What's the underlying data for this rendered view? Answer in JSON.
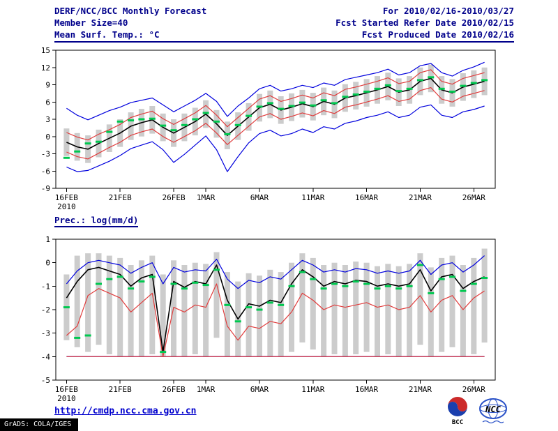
{
  "header": {
    "title": "DERF/NCC/BCC Monthly Forecast",
    "period": "For 2010/02/16-2010/03/27",
    "member_size": "Member Size=40",
    "refer_date": "Fcst Started Refer Date 2010/02/15",
    "produced_date": "Fcst Produced Date 2010/02/16"
  },
  "footer": {
    "link": "http://cmdp.ncc.cma.gov.cn",
    "credit": "GrADS: COLA/IGES",
    "logos": [
      {
        "label": "BCC"
      },
      {
        "label": "NCC"
      }
    ]
  },
  "colors": {
    "header": "#00008b",
    "link": "#0000cd",
    "blue": "#0000dd",
    "red": "#e03c3c",
    "black": "#000000",
    "green": "#00c850",
    "bar": "#cccccc",
    "axis": "#000000"
  },
  "chart_data": [
    {
      "type": "line",
      "title": "Mean Surf. Temp.: °C",
      "xlabel": "",
      "ylabel": "°C",
      "ylim": [
        -9,
        15
      ],
      "yticks": [
        15,
        12,
        9,
        6,
        3,
        0,
        -3,
        -6,
        -9
      ],
      "n": 40,
      "x_sub_year": "2010",
      "xticks": [
        {
          "i": 0,
          "label": "16FEB",
          "sub": "2010"
        },
        {
          "i": 5,
          "label": "21FEB"
        },
        {
          "i": 10,
          "label": "26FEB"
        },
        {
          "i": 13,
          "label": "1MAR"
        },
        {
          "i": 18,
          "label": "6MAR"
        },
        {
          "i": 23,
          "label": "11MAR"
        },
        {
          "i": 28,
          "label": "16MAR"
        },
        {
          "i": 33,
          "label": "21MAR"
        },
        {
          "i": 38,
          "label": "26MAR"
        }
      ],
      "bars": {
        "name": "ensemble-spread",
        "low": [
          -3.4,
          -4.2,
          -4.6,
          -3.6,
          -2.7,
          -1.8,
          -0.6,
          0.0,
          0.5,
          -0.8,
          -1.8,
          -0.8,
          0.2,
          1.5,
          -0.2,
          -2.2,
          -0.6,
          1.0,
          2.6,
          3.2,
          2.2,
          2.7,
          3.3,
          2.8,
          3.7,
          3.2,
          4.3,
          4.7,
          5.2,
          5.7,
          6.3,
          5.3,
          5.7,
          7.2,
          7.7,
          5.7,
          5.2,
          6.2,
          6.7,
          7.2
        ],
        "high": [
          1.4,
          0.6,
          0.2,
          1.2,
          2.1,
          3.0,
          4.2,
          4.8,
          5.3,
          4.0,
          3.0,
          4.0,
          5.0,
          6.3,
          4.6,
          2.6,
          4.2,
          5.8,
          7.4,
          8.0,
          7.0,
          7.5,
          8.1,
          7.6,
          8.5,
          8.0,
          9.1,
          9.5,
          10.0,
          10.5,
          11.1,
          10.1,
          10.5,
          12.0,
          12.5,
          10.5,
          10.0,
          11.0,
          11.5,
          12.0
        ]
      },
      "lines": [
        {
          "name": "ensemble-max",
          "color": "blue",
          "width": 1.2,
          "values": [
            4.9,
            3.7,
            2.9,
            3.7,
            4.5,
            5.1,
            5.9,
            6.3,
            6.7,
            5.5,
            4.3,
            5.3,
            6.3,
            7.5,
            6.1,
            3.5,
            5.3,
            6.7,
            8.3,
            8.9,
            7.9,
            8.3,
            8.9,
            8.5,
            9.3,
            8.9,
            9.9,
            10.3,
            10.7,
            11.1,
            11.7,
            10.7,
            11.1,
            12.3,
            12.7,
            11.1,
            10.5,
            11.5,
            12.1,
            12.9
          ]
        },
        {
          "name": "ensemble-min",
          "color": "blue",
          "width": 1.2,
          "values": [
            -5.3,
            -6.1,
            -5.9,
            -5.1,
            -4.3,
            -3.3,
            -2.1,
            -1.5,
            -0.9,
            -2.3,
            -4.5,
            -3.1,
            -1.5,
            0.1,
            -2.3,
            -6.1,
            -3.5,
            -1.1,
            0.5,
            1.1,
            0.1,
            0.5,
            1.3,
            0.7,
            1.7,
            1.3,
            2.3,
            2.7,
            3.3,
            3.7,
            4.3,
            3.3,
            3.7,
            5.1,
            5.5,
            3.7,
            3.3,
            4.3,
            4.7,
            5.3
          ]
        },
        {
          "name": "upper-band",
          "color": "red",
          "width": 1.2,
          "values": [
            0.7,
            -0.1,
            -0.6,
            0.4,
            1.2,
            2.1,
            3.3,
            3.9,
            4.4,
            3.1,
            2.1,
            3.1,
            4.1,
            5.4,
            3.7,
            1.7,
            3.3,
            4.9,
            6.5,
            7.1,
            6.1,
            6.6,
            7.2,
            6.7,
            7.6,
            7.1,
            8.2,
            8.6,
            9.1,
            9.6,
            10.2,
            9.2,
            9.6,
            11.1,
            11.6,
            9.6,
            9.1,
            10.1,
            10.6,
            11.1
          ]
        },
        {
          "name": "lower-band",
          "color": "red",
          "width": 1.2,
          "values": [
            -2.7,
            -3.5,
            -3.9,
            -2.9,
            -1.9,
            -1.0,
            0.2,
            0.8,
            1.3,
            0.0,
            -1.0,
            0.0,
            1.0,
            2.3,
            0.6,
            -1.4,
            0.2,
            1.8,
            3.4,
            4.0,
            3.0,
            3.5,
            4.1,
            3.6,
            4.5,
            4.0,
            5.1,
            5.5,
            6.0,
            6.5,
            7.1,
            6.1,
            6.5,
            8.0,
            8.5,
            6.5,
            6.0,
            7.0,
            7.5,
            8.0
          ]
        },
        {
          "name": "ensemble-mean",
          "color": "black",
          "width": 1.6,
          "values": [
            -1.0,
            -1.8,
            -2.2,
            -1.2,
            -0.3,
            0.6,
            1.8,
            2.4,
            2.9,
            1.6,
            0.6,
            1.6,
            2.6,
            3.9,
            2.2,
            0.2,
            1.8,
            3.4,
            5.0,
            5.6,
            4.6,
            5.1,
            5.7,
            5.2,
            6.1,
            5.6,
            6.7,
            7.1,
            7.6,
            8.1,
            8.7,
            7.7,
            8.1,
            9.6,
            10.1,
            8.1,
            7.6,
            8.6,
            9.1,
            9.6
          ]
        }
      ],
      "markers": {
        "name": "observation",
        "color": "green",
        "values": [
          -3.7,
          -2.6,
          -1.2,
          -0.9,
          0.8,
          2.6,
          2.8,
          3.0,
          3.1,
          1.9,
          1.1,
          2.0,
          3.0,
          4.1,
          2.6,
          0.4,
          2.0,
          3.6,
          5.2,
          5.8,
          4.8,
          5.3,
          5.9,
          5.4,
          6.3,
          5.8,
          6.9,
          7.3,
          7.8,
          8.3,
          8.9,
          7.9,
          8.3,
          9.8,
          10.3,
          8.3,
          7.8,
          8.8,
          9.3,
          9.8
        ]
      }
    },
    {
      "type": "line",
      "title": "Prec.: log(mm/d)",
      "xlabel": "",
      "ylabel": "log(mm/d)",
      "ylim": [
        -5,
        1
      ],
      "yticks": [
        1,
        0,
        -1,
        -2,
        -3,
        -4,
        -5
      ],
      "n": 40,
      "x_sub_year": "2010",
      "xticks": [
        {
          "i": 0,
          "label": "16FEB",
          "sub": "2010"
        },
        {
          "i": 5,
          "label": "21FEB"
        },
        {
          "i": 10,
          "label": "26FEB"
        },
        {
          "i": 13,
          "label": "1MAR"
        },
        {
          "i": 18,
          "label": "6MAR"
        },
        {
          "i": 23,
          "label": "11MAR"
        },
        {
          "i": 28,
          "label": "16MAR"
        },
        {
          "i": 33,
          "label": "21MAR"
        },
        {
          "i": 38,
          "label": "26MAR"
        }
      ],
      "bars": {
        "name": "ensemble-spread",
        "low": [
          -3.3,
          -3.6,
          -3.8,
          -3.5,
          -3.9,
          -4.0,
          -4.0,
          -4.0,
          -3.9,
          -4.0,
          -4.0,
          -4.0,
          -3.9,
          -4.0,
          -3.2,
          -4.0,
          -4.0,
          -4.0,
          -4.0,
          -4.0,
          -4.0,
          -3.8,
          -3.4,
          -3.7,
          -4.0,
          -3.9,
          -4.0,
          -3.9,
          -3.8,
          -4.0,
          -3.9,
          -4.0,
          -4.0,
          -3.5,
          -4.0,
          -3.8,
          -3.6,
          -4.0,
          -3.9,
          -3.4
        ],
        "high": [
          -0.5,
          0.3,
          0.4,
          0.4,
          0.3,
          0.2,
          -0.1,
          0.1,
          0.3,
          -0.5,
          0.1,
          -0.1,
          0.0,
          -0.05,
          0.45,
          -0.4,
          -0.8,
          -0.45,
          -0.55,
          -0.3,
          -0.4,
          0.0,
          0.4,
          0.2,
          -0.1,
          0.0,
          -0.1,
          0.05,
          0.0,
          -0.15,
          -0.05,
          -0.15,
          -0.05,
          0.4,
          -0.2,
          0.2,
          0.3,
          -0.1,
          0.2,
          0.6
        ]
      },
      "lines": [
        {
          "name": "min-floor-blue",
          "color": "blue",
          "width": 1.2,
          "constant": -4.0
        },
        {
          "name": "min-floor-red",
          "color": "red",
          "width": 1.2,
          "constant": -4.0
        },
        {
          "name": "ensemble-max",
          "color": "blue",
          "width": 1.2,
          "values": [
            -0.9,
            -0.35,
            0.0,
            0.1,
            0.0,
            -0.1,
            -0.45,
            -0.2,
            0.0,
            -0.9,
            -0.2,
            -0.4,
            -0.3,
            -0.35,
            0.15,
            -0.7,
            -1.1,
            -0.75,
            -0.85,
            -0.6,
            -0.7,
            -0.3,
            0.1,
            -0.1,
            -0.4,
            -0.3,
            -0.4,
            -0.25,
            -0.3,
            -0.45,
            -0.35,
            -0.45,
            -0.35,
            0.1,
            -0.5,
            -0.1,
            0.0,
            -0.4,
            -0.1,
            0.3
          ]
        },
        {
          "name": "lower-band",
          "color": "red",
          "width": 1.2,
          "values": [
            -3.1,
            -2.7,
            -1.4,
            -1.1,
            -1.3,
            -1.5,
            -2.1,
            -1.7,
            -1.3,
            -4.0,
            -1.9,
            -2.1,
            -1.8,
            -1.9,
            -0.9,
            -2.7,
            -3.3,
            -2.7,
            -2.8,
            -2.5,
            -2.6,
            -2.1,
            -1.3,
            -1.6,
            -2.0,
            -1.8,
            -1.9,
            -1.8,
            -1.7,
            -1.9,
            -1.8,
            -2.0,
            -1.9,
            -1.4,
            -2.1,
            -1.6,
            -1.4,
            -2.0,
            -1.5,
            -1.2
          ]
        },
        {
          "name": "ensemble-mean",
          "color": "black",
          "width": 1.6,
          "values": [
            -1.5,
            -0.8,
            -0.3,
            -0.2,
            -0.35,
            -0.5,
            -1.0,
            -0.65,
            -0.5,
            -3.8,
            -0.8,
            -1.05,
            -0.8,
            -0.9,
            -0.1,
            -1.6,
            -2.4,
            -1.75,
            -1.85,
            -1.6,
            -1.7,
            -0.9,
            -0.3,
            -0.6,
            -1.0,
            -0.8,
            -0.9,
            -0.75,
            -0.8,
            -1.0,
            -0.9,
            -1.0,
            -0.9,
            -0.3,
            -1.2,
            -0.6,
            -0.5,
            -1.1,
            -0.8,
            -0.6
          ]
        }
      ],
      "markers": {
        "name": "observation",
        "color": "green",
        "values": [
          -1.9,
          -3.2,
          -3.1,
          -0.9,
          -0.7,
          -0.6,
          -1.1,
          -0.8,
          -0.6,
          -3.8,
          -0.9,
          -1.1,
          -0.85,
          -0.95,
          -0.3,
          -1.8,
          -2.5,
          -1.9,
          -2.0,
          -1.7,
          -1.8,
          -1.0,
          -0.4,
          -0.7,
          -1.1,
          -0.9,
          -1.0,
          -0.8,
          -0.9,
          -1.1,
          -1.0,
          -1.1,
          -1.0,
          -0.1,
          -1.3,
          -0.7,
          -0.6,
          -1.2,
          -0.9,
          -0.65
        ]
      }
    }
  ]
}
